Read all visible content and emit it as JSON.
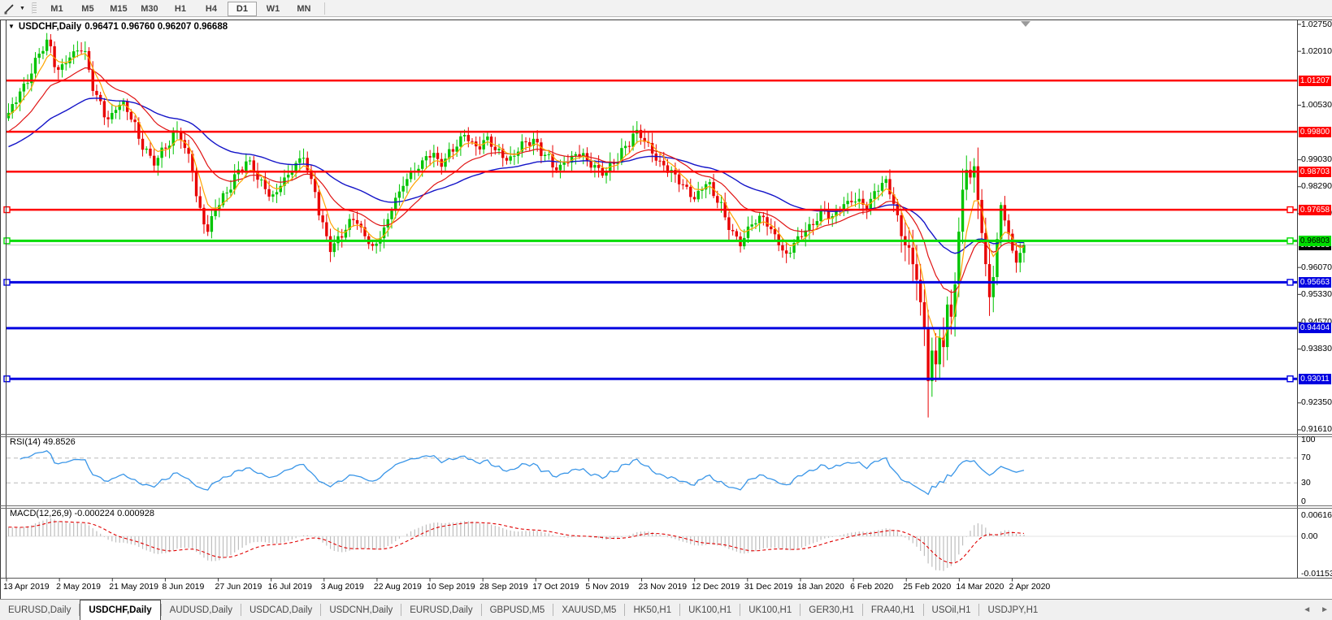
{
  "toolbar": {
    "tool_icon": "crosshair-cursor",
    "timeframes": [
      "M1",
      "M5",
      "M15",
      "M30",
      "H1",
      "H4",
      "D1",
      "W1",
      "MN"
    ],
    "active_timeframe": "D1"
  },
  "chart": {
    "title": {
      "symbol_period": "USDCHF,Daily",
      "ohlc": "0.96471 0.96760 0.96207 0.96688"
    },
    "price_axis_ticks": [
      1.0275,
      1.0201,
      1.0053,
      0.9903,
      0.9829,
      0.9755,
      0.9607,
      0.9533,
      0.9457,
      0.9383,
      0.9235,
      0.9161
    ],
    "last_price": {
      "value": 0.96688,
      "label": "0.96688"
    },
    "levels": [
      {
        "price": 1.01207,
        "label": "1.01207",
        "color": "#FF0000",
        "width": 2.5,
        "selected": false,
        "dark_text": false
      },
      {
        "price": 0.998,
        "label": "0.99800",
        "color": "#FF0000",
        "width": 2.5,
        "selected": false,
        "dark_text": false
      },
      {
        "price": 0.98703,
        "label": "0.98703",
        "color": "#FF0000",
        "width": 2.5,
        "selected": false,
        "dark_text": false
      },
      {
        "price": 0.97658,
        "label": "0.97658",
        "color": "#FF0000",
        "width": 2.5,
        "selected": true,
        "dark_text": false
      },
      {
        "price": 0.96803,
        "label": "0.96803",
        "color": "#00DC00",
        "width": 3,
        "selected": true,
        "dark_text": true
      },
      {
        "price": 0.95663,
        "label": "0.95663",
        "color": "#0000E0",
        "width": 3,
        "selected": true,
        "dark_text": false
      },
      {
        "price": 0.94404,
        "label": "0.94404",
        "color": "#0000E0",
        "width": 3,
        "selected": false,
        "dark_text": false
      },
      {
        "price": 0.93011,
        "label": "0.93011",
        "color": "#0000E0",
        "width": 3,
        "selected": true,
        "dark_text": false
      }
    ],
    "chart_data": {
      "type": "candlestick",
      "symbol": "USDCHF",
      "period": "Daily",
      "bars_total": 266,
      "last_bar": {
        "open": 0.96471,
        "high": 0.9676,
        "low": 0.96207,
        "close": 0.96688
      },
      "crash_low": 0.9195,
      "close_anchors": [
        [
          0,
          1.003
        ],
        [
          4,
          1.011
        ],
        [
          8,
          1.019
        ],
        [
          10,
          1.022
        ],
        [
          13,
          1.015
        ],
        [
          16,
          1.019
        ],
        [
          19,
          1.0205
        ],
        [
          23,
          1.008
        ],
        [
          26,
          1.002
        ],
        [
          29,
          1.0055
        ],
        [
          32,
          1.002
        ],
        [
          35,
          0.9945
        ],
        [
          38,
          0.9895
        ],
        [
          41,
          0.993
        ],
        [
          44,
          0.9985
        ],
        [
          47,
          0.992
        ],
        [
          50,
          0.976
        ],
        [
          52,
          0.97
        ],
        [
          54,
          0.9775
        ],
        [
          57,
          0.982
        ],
        [
          60,
          0.987
        ],
        [
          63,
          0.9895
        ],
        [
          66,
          0.9845
        ],
        [
          69,
          0.98
        ],
        [
          72,
          0.9845
        ],
        [
          75,
          0.9895
        ],
        [
          77,
          0.992
        ],
        [
          79,
          0.9845
        ],
        [
          82,
          0.972
        ],
        [
          84,
          0.966
        ],
        [
          87,
          0.9705
        ],
        [
          90,
          0.974
        ],
        [
          93,
          0.969
        ],
        [
          95,
          0.9658
        ],
        [
          98,
          0.972
        ],
        [
          101,
          0.979
        ],
        [
          104,
          0.985
        ],
        [
          107,
          0.989
        ],
        [
          110,
          0.992
        ],
        [
          113,
          0.989
        ],
        [
          116,
          0.9935
        ],
        [
          119,
          0.9975
        ],
        [
          122,
          0.993
        ],
        [
          125,
          0.9958
        ],
        [
          128,
          0.9928
        ],
        [
          131,
          0.99
        ],
        [
          134,
          0.994
        ],
        [
          137,
          0.9958
        ],
        [
          140,
          0.992
        ],
        [
          143,
          0.987
        ],
        [
          146,
          0.99
        ],
        [
          149,
          0.9928
        ],
        [
          152,
          0.989
        ],
        [
          155,
          0.9858
        ],
        [
          158,
          0.99
        ],
        [
          161,
          0.994
        ],
        [
          164,
          0.9975
        ],
        [
          167,
          0.994
        ],
        [
          170,
          0.99
        ],
        [
          173,
          0.9862
        ],
        [
          176,
          0.983
        ],
        [
          179,
          0.9802
        ],
        [
          182,
          0.984
        ],
        [
          185,
          0.979
        ],
        [
          188,
          0.9722
        ],
        [
          191,
          0.968
        ],
        [
          194,
          0.9722
        ],
        [
          197,
          0.9742
        ],
        [
          200,
          0.97
        ],
        [
          203,
          0.9638
        ],
        [
          206,
          0.968
        ],
        [
          209,
          0.9722
        ],
        [
          212,
          0.976
        ],
        [
          215,
          0.9742
        ],
        [
          218,
          0.978
        ],
        [
          221,
          0.98
        ],
        [
          224,
          0.9772
        ],
        [
          227,
          0.9822
        ],
        [
          229,
          0.9845
        ],
        [
          231,
          0.979
        ],
        [
          233,
          0.97
        ],
        [
          235,
          0.9648
        ],
        [
          237,
          0.9575
        ],
        [
          239,
          0.944
        ],
        [
          240,
          0.93
        ],
        [
          241,
          0.938
        ],
        [
          242,
          0.934
        ],
        [
          243,
          0.942
        ],
        [
          244,
          0.939
        ],
        [
          245,
          0.95
        ],
        [
          246,
          0.947
        ],
        [
          247,
          0.956
        ],
        [
          248,
          0.97
        ],
        [
          249,
          0.982
        ],
        [
          250,
          0.988
        ],
        [
          251,
          0.9855
        ],
        [
          252,
          0.9885
        ],
        [
          253,
          0.98
        ],
        [
          254,
          0.97
        ],
        [
          255,
          0.961
        ],
        [
          256,
          0.9525
        ],
        [
          257,
          0.958
        ],
        [
          258,
          0.968
        ],
        [
          259,
          0.978
        ],
        [
          260,
          0.974
        ],
        [
          261,
          0.97
        ],
        [
          262,
          0.9655
        ],
        [
          263,
          0.9625
        ],
        [
          264,
          0.96471
        ],
        [
          265,
          0.96688
        ]
      ],
      "moving_averages": [
        {
          "name": "fast",
          "color": "#FFA500"
        },
        {
          "name": "medium",
          "color": "#E01414"
        },
        {
          "name": "slow",
          "color": "#1414C8"
        }
      ],
      "up_color": "#00C400",
      "down_color": "#E80000"
    }
  },
  "rsi_panel": {
    "label": "RSI(14) 49.8526",
    "period": 14,
    "current": 49.8526,
    "ticks": [
      100,
      70,
      30,
      0
    ],
    "guides": [
      70,
      30
    ],
    "line_color": "#3A96E8"
  },
  "macd_panel": {
    "label": "MACD(12,26,9) -0.000224 0.000928",
    "fast": 12,
    "slow": 26,
    "signal": 9,
    "current_main": -0.000224,
    "current_signal": 0.000928,
    "ticks": [
      "0.006167",
      "0.00",
      "-0.011531"
    ],
    "tick_values": [
      0.006167,
      0,
      -0.011531
    ],
    "histogram_color": "#BEBEBE",
    "signal_color": "#E00000"
  },
  "date_axis": {
    "labels": [
      "13 Apr 2019",
      "2 May 2019",
      "21 May 2019",
      "8 Jun 2019",
      "27 Jun 2019",
      "16 Jul 2019",
      "3 Aug 2019",
      "22 Aug 2019",
      "10 Sep 2019",
      "28 Sep 2019",
      "17 Oct 2019",
      "5 Nov 2019",
      "23 Nov 2019",
      "12 Dec 2019",
      "31 Dec 2019",
      "18 Jan 2020",
      "6 Feb 2020",
      "25 Feb 2020",
      "14 Mar 2020",
      "2 Apr 2020"
    ]
  },
  "tabbar": {
    "tabs": [
      "EURUSD,Daily",
      "USDCHF,Daily",
      "AUDUSD,Daily",
      "USDCAD,Daily",
      "USDCNH,Daily",
      "EURUSD,Daily",
      "GBPUSD,M5",
      "XAUUSD,M5",
      "HK50,H1",
      "UK100,H1",
      "UK100,H1",
      "GER30,H1",
      "FRA40,H1",
      "USOil,H1",
      "USDJPY,H1"
    ],
    "active_index": 1,
    "scroll_left_icon": "tabs-scroll-left",
    "scroll_right_icon": "tabs-scroll-right"
  }
}
